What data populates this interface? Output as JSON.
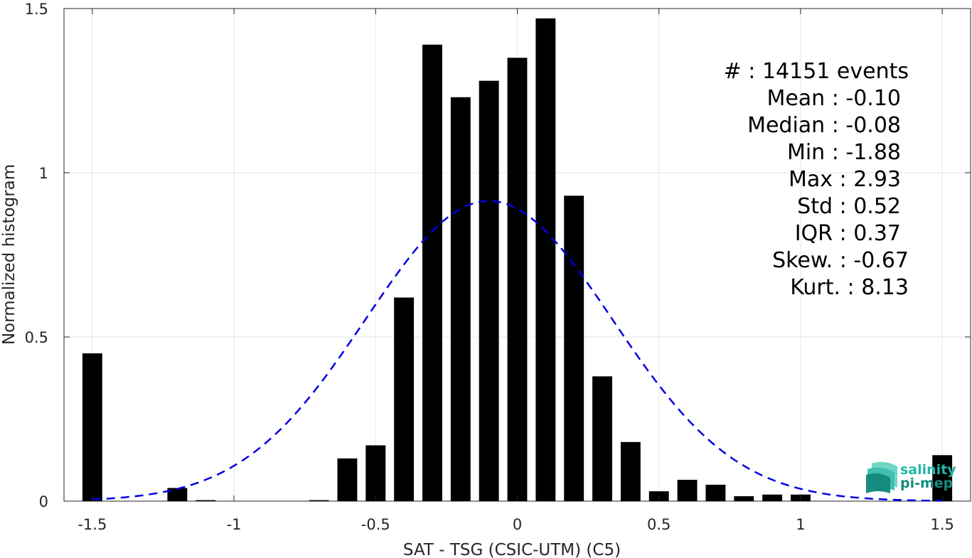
{
  "chart_data": {
    "type": "bar",
    "xlabel": "SAT - TSG (CSIC-UTM) (C5)",
    "ylabel": "Normalized histogram",
    "xlim": [
      -1.6,
      1.6
    ],
    "ylim": [
      0,
      1.5
    ],
    "grid": true,
    "x_ticks": [
      -1.5,
      -1,
      -0.5,
      0,
      0.5,
      1,
      1.5
    ],
    "x_tick_labels": [
      "-1.5",
      "-1",
      "-0.5",
      "0",
      "0.5",
      "1",
      "1.5"
    ],
    "y_ticks": [
      0,
      0.5,
      1,
      1.5
    ],
    "y_tick_labels": [
      "0",
      "0.5",
      "1",
      "1.5"
    ],
    "bar_color": "#000000",
    "bin_width": 0.1,
    "bins": [
      {
        "x": -1.5,
        "y": 0.45
      },
      {
        "x": -1.4,
        "y": 0.0
      },
      {
        "x": -1.3,
        "y": 0.0
      },
      {
        "x": -1.2,
        "y": 0.04
      },
      {
        "x": -1.1,
        "y": 0.003
      },
      {
        "x": -1.0,
        "y": 0.0
      },
      {
        "x": -0.9,
        "y": 0.0
      },
      {
        "x": -0.8,
        "y": 0.0
      },
      {
        "x": -0.7,
        "y": 0.003
      },
      {
        "x": -0.6,
        "y": 0.13
      },
      {
        "x": -0.5,
        "y": 0.17
      },
      {
        "x": -0.4,
        "y": 0.62
      },
      {
        "x": -0.3,
        "y": 1.39
      },
      {
        "x": -0.2,
        "y": 1.23
      },
      {
        "x": -0.1,
        "y": 1.28
      },
      {
        "x": 0.0,
        "y": 1.35
      },
      {
        "x": 0.1,
        "y": 1.47
      },
      {
        "x": 0.2,
        "y": 0.93
      },
      {
        "x": 0.3,
        "y": 0.38
      },
      {
        "x": 0.4,
        "y": 0.18
      },
      {
        "x": 0.5,
        "y": 0.03
      },
      {
        "x": 0.6,
        "y": 0.065
      },
      {
        "x": 0.7,
        "y": 0.05
      },
      {
        "x": 0.8,
        "y": 0.015
      },
      {
        "x": 0.9,
        "y": 0.02
      },
      {
        "x": 1.0,
        "y": 0.02
      },
      {
        "x": 1.1,
        "y": 0.0
      },
      {
        "x": 1.2,
        "y": 0.0
      },
      {
        "x": 1.3,
        "y": 0.0
      },
      {
        "x": 1.4,
        "y": 0.0
      },
      {
        "x": 1.5,
        "y": 0.14
      }
    ],
    "fit": {
      "kind": "gaussian",
      "mean": -0.1,
      "std": 0.435,
      "color": "#0000e6",
      "style": "dashed",
      "x_range": [
        -1.5,
        1.5
      ]
    },
    "stats_lines": [
      "#  : 14151 events",
      "Mean : -0.10",
      "Median : -0.08",
      "Min : -1.88",
      "Max : 2.93",
      "Std : 0.52",
      "IQR : 0.37",
      "Skew. : -0.67",
      "Kurt. : 8.13"
    ]
  },
  "logo": {
    "line1": "salinity",
    "line2": "pi-mep",
    "color1": "#1fb8a6",
    "color2": "#168c80"
  }
}
